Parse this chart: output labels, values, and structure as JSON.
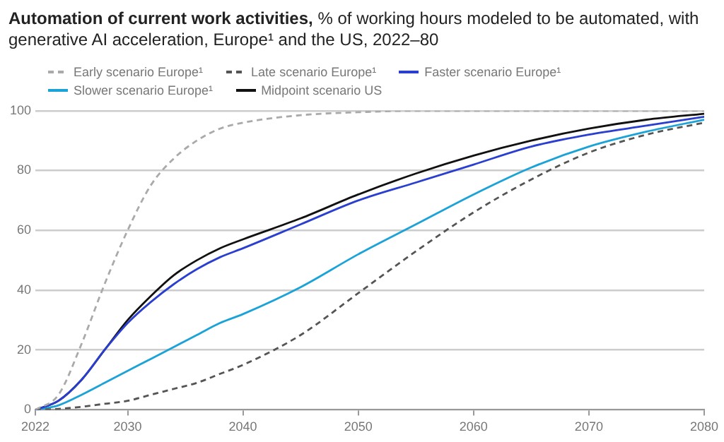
{
  "chart_data": {
    "type": "line",
    "title": "Automation of current work activities,",
    "subtitle": "% of working hours modeled to be automated, with generative AI acceleration, Europe¹ and the US, 2022–80",
    "x": [
      2022,
      2024,
      2026,
      2028,
      2030,
      2032,
      2034,
      2036,
      2038,
      2040,
      2045,
      2050,
      2055,
      2060,
      2065,
      2070,
      2075,
      2080
    ],
    "series": [
      {
        "name": "Early scenario Europe¹",
        "color": "#aaaaaa",
        "line_style": "dashed",
        "values": [
          0,
          5,
          22,
          42,
          60,
          75,
          84,
          90,
          94,
          96,
          98.5,
          99.5,
          100,
          100,
          100,
          100,
          100,
          100
        ]
      },
      {
        "name": "Late scenario Europe¹",
        "color": "#555555",
        "line_style": "dashed",
        "values": [
          0,
          0.3,
          1,
          2,
          3,
          5,
          7,
          9,
          12,
          15,
          25,
          39,
          53,
          66,
          77,
          86,
          92,
          96
        ]
      },
      {
        "name": "Faster scenario Europe¹",
        "color": "#2a3fd0",
        "line_style": "solid",
        "values": [
          0,
          3,
          10,
          20,
          29,
          36,
          42,
          47,
          51,
          54,
          62,
          70,
          76,
          82,
          88,
          92,
          95,
          98
        ]
      },
      {
        "name": "Slower scenario Europe¹",
        "color": "#1ba3d8",
        "line_style": "solid",
        "values": [
          0,
          1.5,
          5,
          9,
          13,
          17,
          21,
          25,
          29,
          32,
          41,
          52,
          62,
          72,
          81,
          88,
          93,
          97
        ]
      },
      {
        "name": "Midpoint scenario US",
        "color": "#111111",
        "line_style": "solid",
        "values": [
          0,
          3,
          10,
          20,
          30,
          38,
          45,
          50,
          54,
          57,
          64,
          72,
          79,
          85,
          90,
          94,
          97,
          99
        ]
      }
    ],
    "xlim": [
      2022,
      2080
    ],
    "xticks": [
      2022,
      2030,
      2040,
      2050,
      2060,
      2070,
      2080
    ],
    "ylim": [
      0,
      100
    ],
    "yticks": [
      0,
      20,
      40,
      60,
      80,
      100
    ],
    "grid": "y",
    "legend": "top left",
    "marker": "none"
  }
}
